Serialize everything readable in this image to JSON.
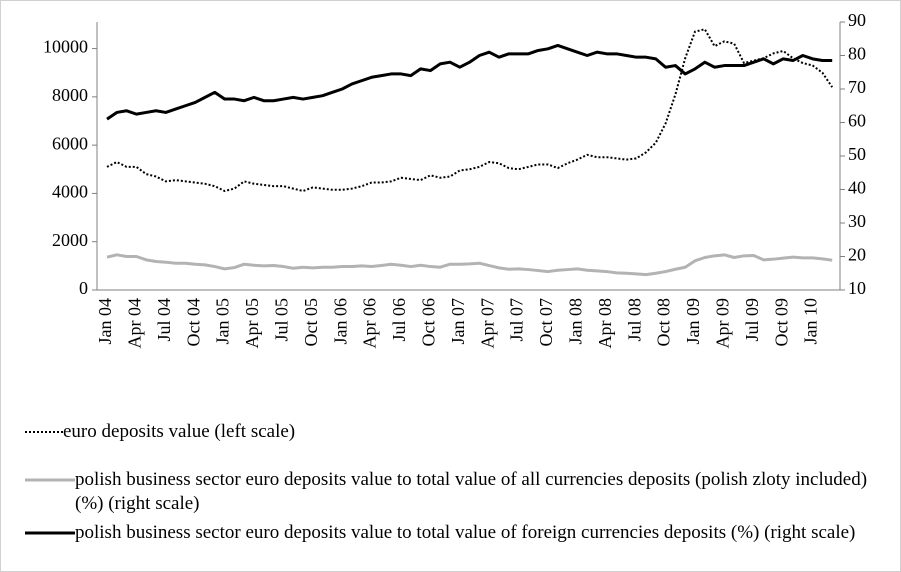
{
  "chart_data": {
    "type": "line",
    "categories": [
      "Jan 04",
      null,
      null,
      "Apr 04",
      null,
      null,
      "Jul 04",
      null,
      null,
      "Oct 04",
      null,
      null,
      "Jan 05",
      null,
      null,
      "Apr 05",
      null,
      null,
      "Jul 05",
      null,
      null,
      "Oct 05",
      null,
      null,
      "Jan 06",
      null,
      null,
      "Apr 06",
      null,
      null,
      "Jul 06",
      null,
      null,
      "Oct 06",
      null,
      null,
      "Jan 07",
      null,
      null,
      "Apr 07",
      null,
      null,
      "Jul 07",
      null,
      null,
      "Oct 07",
      null,
      null,
      "Jan 08",
      null,
      null,
      "Apr 08",
      null,
      null,
      "Jul 08",
      null,
      null,
      "Oct 08",
      null,
      null,
      "Jan 09",
      null,
      null,
      "Apr 09",
      null,
      null,
      "Jul 09",
      null,
      null,
      "Oct 09",
      null,
      null,
      "Jan 10",
      null,
      null
    ],
    "series": [
      {
        "name": "euro deposits value (left scale)",
        "color": "#000000",
        "line_style": "dotted",
        "axis": "y",
        "values": [
          5100,
          5300,
          5100,
          5100,
          4800,
          4700,
          4500,
          4550,
          4500,
          4450,
          4400,
          4300,
          4100,
          4200,
          4500,
          4400,
          4350,
          4300,
          4300,
          4200,
          4100,
          4250,
          4200,
          4150,
          4150,
          4200,
          4300,
          4450,
          4450,
          4500,
          4650,
          4600,
          4550,
          4750,
          4650,
          4700,
          4950,
          5000,
          5100,
          5300,
          5250,
          5050,
          5000,
          5100,
          5200,
          5200,
          5050,
          5250,
          5400,
          5600,
          5500,
          5500,
          5450,
          5400,
          5450,
          5700,
          6100,
          6900,
          8100,
          9600,
          10700,
          10800,
          10100,
          10300,
          10200,
          9400,
          9500,
          9600,
          9800,
          9900,
          9600,
          9400,
          9300,
          9000,
          8400
        ]
      },
      {
        "name": "polish business sector euro deposits value to total value of all currencies deposits (polish zloty included) (%) (right scale)",
        "color": "#b3b3b3",
        "line_style": "solid",
        "axis": "y2",
        "values": [
          19.8,
          20.5,
          20,
          20,
          19,
          18.5,
          18.3,
          18,
          18,
          17.7,
          17.5,
          17,
          16.3,
          16.7,
          17.7,
          17.4,
          17.2,
          17.3,
          17,
          16.5,
          16.8,
          16.6,
          16.8,
          16.8,
          17,
          17,
          17.2,
          17,
          17.3,
          17.7,
          17.4,
          17,
          17.4,
          17,
          16.8,
          17.7,
          17.7,
          17.8,
          18,
          17.3,
          16.6,
          16.2,
          16.3,
          16.1,
          15.8,
          15.5,
          15.9,
          16.1,
          16.3,
          15.9,
          15.7,
          15.5,
          15.1,
          15,
          14.8,
          14.6,
          15,
          15.5,
          16.2,
          16.8,
          18.7,
          19.7,
          20.2,
          20.5,
          19.7,
          20.2,
          20.3,
          19,
          19.2,
          19.5,
          19.8,
          19.6,
          19.6,
          19.3,
          18.9
        ]
      },
      {
        "name": "polish business sector euro deposits value to total value of foreign currencies deposits (%) (right scale)",
        "color": "#000000",
        "line_style": "solid",
        "axis": "y2",
        "values": [
          61,
          63,
          63.5,
          62.5,
          63,
          63.5,
          63,
          64,
          65,
          66,
          67.5,
          69,
          67,
          67,
          66.5,
          67.5,
          66.5,
          66.5,
          67,
          67.5,
          67,
          67.5,
          68,
          69,
          70,
          71.5,
          72.5,
          73.5,
          74,
          74.5,
          74.5,
          74,
          76,
          75.5,
          77.5,
          78,
          76.5,
          78,
          80,
          81,
          79.5,
          80.5,
          80.5,
          80.5,
          81.5,
          82,
          83,
          82,
          81,
          80,
          81,
          80.5,
          80.5,
          80,
          79.5,
          79.5,
          79,
          76.5,
          77,
          74.5,
          76,
          78,
          76.5,
          77,
          77,
          77,
          78,
          79,
          77.5,
          79,
          78.5,
          80,
          79,
          78.5,
          78.5
        ]
      }
    ],
    "ylim": [
      0,
      11100
    ],
    "yticks": [
      0,
      2000,
      4000,
      6000,
      8000,
      10000
    ],
    "y2lim": [
      10,
      90
    ],
    "y2ticks": [
      10,
      20,
      30,
      40,
      50,
      60,
      70,
      80,
      90
    ],
    "grid": false
  }
}
